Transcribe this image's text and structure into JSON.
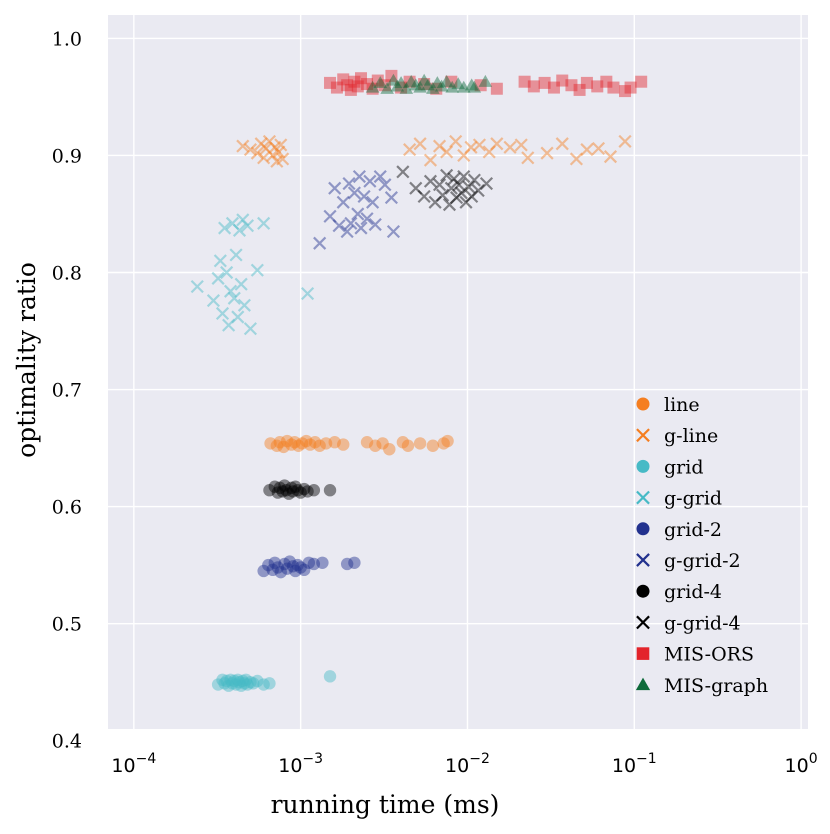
{
  "chart_data": {
    "type": "scatter",
    "title": "",
    "xlabel": "running time (ms)",
    "ylabel": "optimality ratio",
    "xscale": "log",
    "xlim": [
      7e-05,
      1.1
    ],
    "ylim": [
      0.41,
      1.02
    ],
    "grid": true,
    "legend_position": "lower-right",
    "x_ticks": [
      {
        "value": 0.0001,
        "base": "10",
        "exp": "−4"
      },
      {
        "value": 0.001,
        "base": "10",
        "exp": "−3"
      },
      {
        "value": 0.01,
        "base": "10",
        "exp": "−2"
      },
      {
        "value": 0.1,
        "base": "10",
        "exp": "−1"
      },
      {
        "value": 1,
        "base": "10",
        "exp": "0"
      }
    ],
    "y_ticks": [
      {
        "value": 0.4,
        "label": "0.4"
      },
      {
        "value": 0.5,
        "label": "0.5"
      },
      {
        "value": 0.6,
        "label": "0.6"
      },
      {
        "value": 0.7,
        "label": "0.7"
      },
      {
        "value": 0.8,
        "label": "0.8"
      },
      {
        "value": 0.9,
        "label": "0.9"
      },
      {
        "value": 1.0,
        "label": "1.0"
      }
    ],
    "colors": {
      "background": "#eaeaf2",
      "grid": "#ffffff",
      "orange": "#f57e20",
      "cyan": "#47bac6",
      "navy": "#22318e",
      "black": "#000000",
      "red": "#e3242b",
      "green": "#0e6a3a"
    },
    "series": [
      {
        "name": "line",
        "marker": "circle",
        "color": "#f57e20",
        "points": [
          [
            0.00066,
            0.654
          ],
          [
            0.00072,
            0.652
          ],
          [
            0.00075,
            0.655
          ],
          [
            0.00079,
            0.651
          ],
          [
            0.00083,
            0.656
          ],
          [
            0.00088,
            0.653
          ],
          [
            0.00092,
            0.655
          ],
          [
            0.00097,
            0.652
          ],
          [
            0.00102,
            0.654
          ],
          [
            0.00108,
            0.656
          ],
          [
            0.00114,
            0.653
          ],
          [
            0.00122,
            0.655
          ],
          [
            0.0013,
            0.652
          ],
          [
            0.00142,
            0.654
          ],
          [
            0.0016,
            0.655
          ],
          [
            0.0018,
            0.653
          ],
          [
            0.0025,
            0.655
          ],
          [
            0.0028,
            0.652
          ],
          [
            0.0031,
            0.654
          ],
          [
            0.0034,
            0.649
          ],
          [
            0.0041,
            0.655
          ],
          [
            0.0044,
            0.652
          ],
          [
            0.0052,
            0.654
          ],
          [
            0.0062,
            0.652
          ],
          [
            0.0072,
            0.654
          ],
          [
            0.0076,
            0.656
          ]
        ]
      },
      {
        "name": "g-line",
        "marker": "x",
        "color": "#f57e20",
        "points": [
          [
            0.00045,
            0.908
          ],
          [
            0.0005,
            0.905
          ],
          [
            0.00055,
            0.902
          ],
          [
            0.00058,
            0.91
          ],
          [
            0.0006,
            0.898
          ],
          [
            0.00062,
            0.906
          ],
          [
            0.00065,
            0.912
          ],
          [
            0.00068,
            0.9
          ],
          [
            0.0007,
            0.907
          ],
          [
            0.00072,
            0.895
          ],
          [
            0.00074,
            0.903
          ],
          [
            0.00076,
            0.909
          ],
          [
            0.00078,
            0.897
          ],
          [
            0.0045,
            0.905
          ],
          [
            0.0052,
            0.91
          ],
          [
            0.006,
            0.896
          ],
          [
            0.0068,
            0.908
          ],
          [
            0.0075,
            0.903
          ],
          [
            0.0085,
            0.912
          ],
          [
            0.0095,
            0.9
          ],
          [
            0.0105,
            0.907
          ],
          [
            0.0118,
            0.909
          ],
          [
            0.0135,
            0.903
          ],
          [
            0.015,
            0.91
          ],
          [
            0.018,
            0.907
          ],
          [
            0.021,
            0.909
          ],
          [
            0.023,
            0.898
          ],
          [
            0.03,
            0.902
          ],
          [
            0.037,
            0.91
          ],
          [
            0.045,
            0.897
          ],
          [
            0.052,
            0.905
          ],
          [
            0.061,
            0.906
          ],
          [
            0.072,
            0.899
          ],
          [
            0.088,
            0.912
          ]
        ]
      },
      {
        "name": "grid",
        "marker": "circle",
        "color": "#47bac6",
        "points": [
          [
            0.00032,
            0.448
          ],
          [
            0.00034,
            0.452
          ],
          [
            0.00035,
            0.449
          ],
          [
            0.00036,
            0.451
          ],
          [
            0.00037,
            0.447
          ],
          [
            0.00038,
            0.452
          ],
          [
            0.00039,
            0.449
          ],
          [
            0.0004,
            0.451
          ],
          [
            0.00041,
            0.448
          ],
          [
            0.00042,
            0.452
          ],
          [
            0.00043,
            0.45
          ],
          [
            0.00044,
            0.447
          ],
          [
            0.00045,
            0.451
          ],
          [
            0.00046,
            0.449
          ],
          [
            0.00047,
            0.452
          ],
          [
            0.00048,
            0.448
          ],
          [
            0.0005,
            0.45
          ],
          [
            0.00052,
            0.449
          ],
          [
            0.00055,
            0.451
          ],
          [
            0.0006,
            0.448
          ],
          [
            0.00065,
            0.449
          ],
          [
            0.0015,
            0.455
          ]
        ]
      },
      {
        "name": "g-grid",
        "marker": "x",
        "color": "#47bac6",
        "points": [
          [
            0.00024,
            0.788
          ],
          [
            0.0003,
            0.776
          ],
          [
            0.00032,
            0.795
          ],
          [
            0.00033,
            0.81
          ],
          [
            0.00034,
            0.765
          ],
          [
            0.00035,
            0.838
          ],
          [
            0.00036,
            0.8
          ],
          [
            0.00037,
            0.755
          ],
          [
            0.00038,
            0.784
          ],
          [
            0.00039,
            0.842
          ],
          [
            0.0004,
            0.778
          ],
          [
            0.00041,
            0.815
          ],
          [
            0.00042,
            0.762
          ],
          [
            0.00043,
            0.836
          ],
          [
            0.00044,
            0.79
          ],
          [
            0.00045,
            0.845
          ],
          [
            0.00046,
            0.772
          ],
          [
            0.00048,
            0.84
          ],
          [
            0.0005,
            0.752
          ],
          [
            0.00055,
            0.802
          ],
          [
            0.0006,
            0.842
          ],
          [
            0.0011,
            0.782
          ]
        ]
      },
      {
        "name": "grid-2",
        "marker": "circle",
        "color": "#22318e",
        "points": [
          [
            0.0006,
            0.545
          ],
          [
            0.00064,
            0.55
          ],
          [
            0.00068,
            0.546
          ],
          [
            0.0007,
            0.552
          ],
          [
            0.00073,
            0.548
          ],
          [
            0.00076,
            0.544
          ],
          [
            0.0008,
            0.551
          ],
          [
            0.00083,
            0.547
          ],
          [
            0.00086,
            0.553
          ],
          [
            0.0009,
            0.549
          ],
          [
            0.00093,
            0.545
          ],
          [
            0.00096,
            0.55
          ],
          [
            0.001,
            0.548
          ],
          [
            0.00105,
            0.546
          ],
          [
            0.00112,
            0.552
          ],
          [
            0.0012,
            0.551
          ],
          [
            0.00135,
            0.552
          ],
          [
            0.0019,
            0.551
          ],
          [
            0.0021,
            0.552
          ]
        ]
      },
      {
        "name": "g-grid-2",
        "marker": "x",
        "color": "#22318e",
        "points": [
          [
            0.0013,
            0.825
          ],
          [
            0.0015,
            0.848
          ],
          [
            0.0016,
            0.872
          ],
          [
            0.0017,
            0.84
          ],
          [
            0.0018,
            0.86
          ],
          [
            0.0019,
            0.835
          ],
          [
            0.00195,
            0.876
          ],
          [
            0.002,
            0.842
          ],
          [
            0.0021,
            0.868
          ],
          [
            0.0022,
            0.85
          ],
          [
            0.00225,
            0.882
          ],
          [
            0.0023,
            0.838
          ],
          [
            0.0024,
            0.865
          ],
          [
            0.0025,
            0.846
          ],
          [
            0.0026,
            0.878
          ],
          [
            0.0027,
            0.86
          ],
          [
            0.0028,
            0.841
          ],
          [
            0.003,
            0.882
          ],
          [
            0.0032,
            0.875
          ],
          [
            0.0035,
            0.864
          ],
          [
            0.0036,
            0.835
          ]
        ]
      },
      {
        "name": "grid-4",
        "marker": "circle",
        "color": "#000000",
        "points": [
          [
            0.00065,
            0.614
          ],
          [
            0.0007,
            0.617
          ],
          [
            0.00073,
            0.612
          ],
          [
            0.00075,
            0.616
          ],
          [
            0.00078,
            0.613
          ],
          [
            0.0008,
            0.618
          ],
          [
            0.00082,
            0.614
          ],
          [
            0.00085,
            0.611
          ],
          [
            0.00088,
            0.616
          ],
          [
            0.0009,
            0.613
          ],
          [
            0.00093,
            0.617
          ],
          [
            0.00096,
            0.614
          ],
          [
            0.001,
            0.612
          ],
          [
            0.00105,
            0.615
          ],
          [
            0.0011,
            0.613
          ],
          [
            0.0012,
            0.614
          ],
          [
            0.0015,
            0.614
          ]
        ]
      },
      {
        "name": "g-grid-4",
        "marker": "x",
        "color": "#000000",
        "points": [
          [
            0.0041,
            0.886
          ],
          [
            0.0049,
            0.872
          ],
          [
            0.0055,
            0.865
          ],
          [
            0.006,
            0.878
          ],
          [
            0.0064,
            0.86
          ],
          [
            0.0068,
            0.875
          ],
          [
            0.0071,
            0.866
          ],
          [
            0.0075,
            0.883
          ],
          [
            0.0078,
            0.858
          ],
          [
            0.008,
            0.872
          ],
          [
            0.0083,
            0.88
          ],
          [
            0.0086,
            0.864
          ],
          [
            0.0089,
            0.875
          ],
          [
            0.0092,
            0.868
          ],
          [
            0.0095,
            0.882
          ],
          [
            0.0098,
            0.86
          ],
          [
            0.0102,
            0.873
          ],
          [
            0.0106,
            0.865
          ],
          [
            0.011,
            0.879
          ],
          [
            0.0116,
            0.87
          ],
          [
            0.013,
            0.876
          ]
        ]
      },
      {
        "name": "MIS-ORS",
        "marker": "square",
        "color": "#e3242b",
        "points": [
          [
            0.0015,
            0.962
          ],
          [
            0.00165,
            0.958
          ],
          [
            0.0018,
            0.965
          ],
          [
            0.0019,
            0.96
          ],
          [
            0.002,
            0.956
          ],
          [
            0.0021,
            0.963
          ],
          [
            0.0022,
            0.959
          ],
          [
            0.0023,
            0.966
          ],
          [
            0.0025,
            0.961
          ],
          [
            0.0027,
            0.957
          ],
          [
            0.0029,
            0.964
          ],
          [
            0.0032,
            0.96
          ],
          [
            0.0035,
            0.968
          ],
          [
            0.004,
            0.958
          ],
          [
            0.0045,
            0.963
          ],
          [
            0.0055,
            0.961
          ],
          [
            0.0065,
            0.957
          ],
          [
            0.008,
            0.963
          ],
          [
            0.012,
            0.96
          ],
          [
            0.015,
            0.957
          ],
          [
            0.022,
            0.963
          ],
          [
            0.025,
            0.959
          ],
          [
            0.029,
            0.962
          ],
          [
            0.033,
            0.958
          ],
          [
            0.037,
            0.964
          ],
          [
            0.042,
            0.96
          ],
          [
            0.047,
            0.956
          ],
          [
            0.052,
            0.962
          ],
          [
            0.06,
            0.959
          ],
          [
            0.068,
            0.963
          ],
          [
            0.075,
            0.958
          ],
          [
            0.088,
            0.955
          ],
          [
            0.095,
            0.958
          ],
          [
            0.11,
            0.963
          ]
        ]
      },
      {
        "name": "MIS-graph",
        "marker": "triangle",
        "color": "#0e6a3a",
        "points": [
          [
            0.0027,
            0.958
          ],
          [
            0.003,
            0.962
          ],
          [
            0.0033,
            0.957
          ],
          [
            0.0036,
            0.964
          ],
          [
            0.0038,
            0.959
          ],
          [
            0.004,
            0.962
          ],
          [
            0.0043,
            0.957
          ],
          [
            0.0046,
            0.963
          ],
          [
            0.0049,
            0.96
          ],
          [
            0.0052,
            0.958
          ],
          [
            0.0055,
            0.964
          ],
          [
            0.0058,
            0.96
          ],
          [
            0.0062,
            0.957
          ],
          [
            0.0066,
            0.962
          ],
          [
            0.007,
            0.959
          ],
          [
            0.0075,
            0.963
          ],
          [
            0.0081,
            0.958
          ],
          [
            0.0088,
            0.961
          ],
          [
            0.0095,
            0.958
          ],
          [
            0.0106,
            0.96
          ],
          [
            0.011,
            0.958
          ],
          [
            0.0128,
            0.963
          ]
        ]
      }
    ]
  }
}
